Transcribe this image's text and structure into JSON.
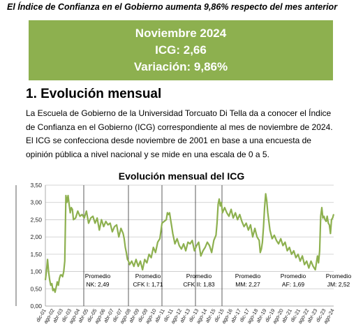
{
  "headline": "El Índice de Confianza en el Gobierno aumenta 9,86% respecto del mes anterior",
  "banner": {
    "line1": "Noviembre 2024",
    "line2": "ICG: 2,66",
    "line3": "Variación: 9,86%",
    "color": "#8db04f"
  },
  "section": {
    "title": "1. Evolución mensual",
    "paragraph_lines": [
      "La Escuela de Gobierno de la Universidad Torcuato Di Tella da a conocer el Índice",
      "de Confianza en el Gobierno (ICG) correspondiente al mes de noviembre de 2024.",
      "El ICG se confecciona desde noviembre de 2001 en base a una encuesta de",
      "opinión pública a nivel nacional y se mide en una escala de 0 a 5."
    ]
  },
  "chart_data": {
    "type": "line",
    "title": "Evolución mensual del ICG",
    "ylim": [
      0,
      3.5
    ],
    "yticks": [
      "0,00",
      "0,50",
      "1,00",
      "1,50",
      "2,00",
      "2,50",
      "3,00",
      "3,50"
    ],
    "grid": true,
    "line_color": "#8db04f",
    "x_tick_labels": [
      "dic-01",
      "ago-02",
      "abr-03",
      "dic-03",
      "ago-04",
      "abr-05",
      "dic-05",
      "ago-06",
      "abr-07",
      "dic-07",
      "ago-08",
      "abr-09",
      "dic-09",
      "ago-10",
      "abr-11",
      "dic-11",
      "ago-12",
      "abr-13",
      "dic-13",
      "ago-14",
      "abr-15",
      "dic-15",
      "ago-16",
      "abr-17",
      "dic-17",
      "ago-18",
      "abr-19",
      "dic-19",
      "ago-20",
      "abr-21",
      "dic-21",
      "ago-22",
      "abr-23",
      "dic-23",
      "ago-24"
    ],
    "periods": [
      {
        "label": "Promedio",
        "value_label": "NK: 2,49"
      },
      {
        "label": "Promedio",
        "value_label": "CFK I: 1,71"
      },
      {
        "label": "Promedio",
        "value_label": "CFK II: 1,83"
      },
      {
        "label": "Promedio",
        "value_label": "MM: 2,27"
      },
      {
        "label": "Promedio",
        "value_label": "AF: 1,69"
      },
      {
        "label": "Promedio",
        "value_label": "JM: 2,52"
      }
    ],
    "series": [
      {
        "anchors": [
          [
            0,
            0.75
          ],
          [
            1,
            1.0
          ],
          [
            2,
            1.35
          ],
          [
            3,
            1.0
          ],
          [
            4,
            0.75
          ],
          [
            5,
            0.6
          ],
          [
            6,
            0.65
          ],
          [
            7,
            0.45
          ],
          [
            8,
            0.5
          ],
          [
            9,
            0.4
          ],
          [
            10,
            0.55
          ],
          [
            11,
            0.7
          ],
          [
            12,
            0.6
          ],
          [
            13,
            0.8
          ],
          [
            14,
            0.9
          ],
          [
            15,
            0.9
          ],
          [
            16,
            0.85
          ],
          [
            17,
            1.0
          ],
          [
            18,
            1.3
          ],
          [
            19,
            3.2
          ],
          [
            20,
            3.0
          ],
          [
            21,
            3.2
          ],
          [
            22,
            2.95
          ],
          [
            23,
            2.7
          ],
          [
            24,
            2.85
          ],
          [
            25,
            2.8
          ],
          [
            26,
            2.5
          ],
          [
            28,
            2.55
          ],
          [
            30,
            2.75
          ],
          [
            32,
            2.6
          ],
          [
            34,
            2.65
          ],
          [
            36,
            2.55
          ],
          [
            38,
            2.75
          ],
          [
            40,
            2.4
          ],
          [
            42,
            2.55
          ],
          [
            44,
            2.6
          ],
          [
            46,
            2.4
          ],
          [
            48,
            2.55
          ],
          [
            50,
            2.2
          ],
          [
            52,
            2.5
          ],
          [
            54,
            2.3
          ],
          [
            56,
            2.45
          ],
          [
            58,
            2.35
          ],
          [
            60,
            2.4
          ],
          [
            62,
            2.15
          ],
          [
            64,
            2.3
          ],
          [
            66,
            2.35
          ],
          [
            68,
            2.0
          ],
          [
            70,
            2.25
          ],
          [
            72,
            2.1
          ],
          [
            73,
            1.95
          ],
          [
            74,
            1.7
          ],
          [
            75,
            1.55
          ],
          [
            76,
            1.35
          ],
          [
            77,
            1.3
          ],
          [
            78,
            1.2
          ],
          [
            80,
            1.3
          ],
          [
            82,
            1.15
          ],
          [
            84,
            1.35
          ],
          [
            86,
            1.15
          ],
          [
            88,
            1.3
          ],
          [
            90,
            1.05
          ],
          [
            92,
            1.35
          ],
          [
            94,
            1.25
          ],
          [
            96,
            1.5
          ],
          [
            98,
            1.4
          ],
          [
            100,
            1.7
          ],
          [
            102,
            1.55
          ],
          [
            104,
            1.85
          ],
          [
            106,
            1.95
          ],
          [
            108,
            2.4
          ],
          [
            110,
            2.45
          ],
          [
            112,
            2.5
          ],
          [
            113,
            2.7
          ],
          [
            114,
            2.65
          ],
          [
            115,
            2.7
          ],
          [
            116,
            2.5
          ],
          [
            117,
            2.3
          ],
          [
            118,
            2.1
          ],
          [
            120,
            1.8
          ],
          [
            122,
            1.95
          ],
          [
            124,
            1.75
          ],
          [
            126,
            1.65
          ],
          [
            128,
            1.8
          ],
          [
            130,
            1.6
          ],
          [
            132,
            1.85
          ],
          [
            134,
            1.8
          ],
          [
            136,
            1.9
          ],
          [
            138,
            1.6
          ],
          [
            140,
            1.75
          ],
          [
            142,
            1.85
          ],
          [
            144,
            1.45
          ],
          [
            146,
            1.6
          ],
          [
            148,
            1.7
          ],
          [
            150,
            1.85
          ],
          [
            152,
            1.75
          ],
          [
            154,
            1.55
          ],
          [
            156,
            1.9
          ],
          [
            158,
            2.05
          ],
          [
            159,
            2.4
          ],
          [
            160,
            2.95
          ],
          [
            161,
            3.1
          ],
          [
            162,
            2.9
          ],
          [
            163,
            3.0
          ],
          [
            164,
            2.7
          ],
          [
            166,
            2.85
          ],
          [
            168,
            2.7
          ],
          [
            170,
            2.6
          ],
          [
            172,
            2.8
          ],
          [
            174,
            2.55
          ],
          [
            176,
            2.7
          ],
          [
            178,
            2.5
          ],
          [
            180,
            2.65
          ],
          [
            182,
            2.45
          ],
          [
            184,
            2.3
          ],
          [
            186,
            2.4
          ],
          [
            188,
            2.2
          ],
          [
            190,
            2.35
          ],
          [
            192,
            2.0
          ],
          [
            194,
            2.25
          ],
          [
            196,
            2.0
          ],
          [
            198,
            1.9
          ],
          [
            199,
            1.55
          ],
          [
            200,
            1.65
          ],
          [
            201,
            1.85
          ],
          [
            202,
            2.3
          ],
          [
            203,
            2.85
          ],
          [
            204,
            3.25
          ],
          [
            205,
            3.05
          ],
          [
            206,
            2.7
          ],
          [
            208,
            2.2
          ],
          [
            210,
            1.95
          ],
          [
            212,
            2.05
          ],
          [
            214,
            1.9
          ],
          [
            216,
            1.8
          ],
          [
            218,
            1.95
          ],
          [
            220,
            1.75
          ],
          [
            222,
            1.85
          ],
          [
            224,
            1.6
          ],
          [
            226,
            1.7
          ],
          [
            228,
            1.5
          ],
          [
            230,
            1.6
          ],
          [
            232,
            1.4
          ],
          [
            234,
            1.5
          ],
          [
            236,
            1.3
          ],
          [
            238,
            1.45
          ],
          [
            240,
            1.2
          ],
          [
            242,
            1.3
          ],
          [
            244,
            1.1
          ],
          [
            246,
            1.3
          ],
          [
            248,
            1.15
          ],
          [
            250,
            1.05
          ],
          [
            252,
            1.45
          ],
          [
            253,
            1.25
          ],
          [
            254,
            1.6
          ],
          [
            255,
            2.6
          ],
          [
            256,
            2.85
          ],
          [
            257,
            2.55
          ],
          [
            258,
            2.6
          ],
          [
            259,
            2.5
          ],
          [
            260,
            2.45
          ],
          [
            261,
            2.6
          ],
          [
            262,
            2.4
          ],
          [
            263,
            2.35
          ],
          [
            264,
            2.1
          ],
          [
            265,
            2.5
          ],
          [
            266,
            2.55
          ],
          [
            267,
            2.66
          ]
        ]
      }
    ]
  }
}
